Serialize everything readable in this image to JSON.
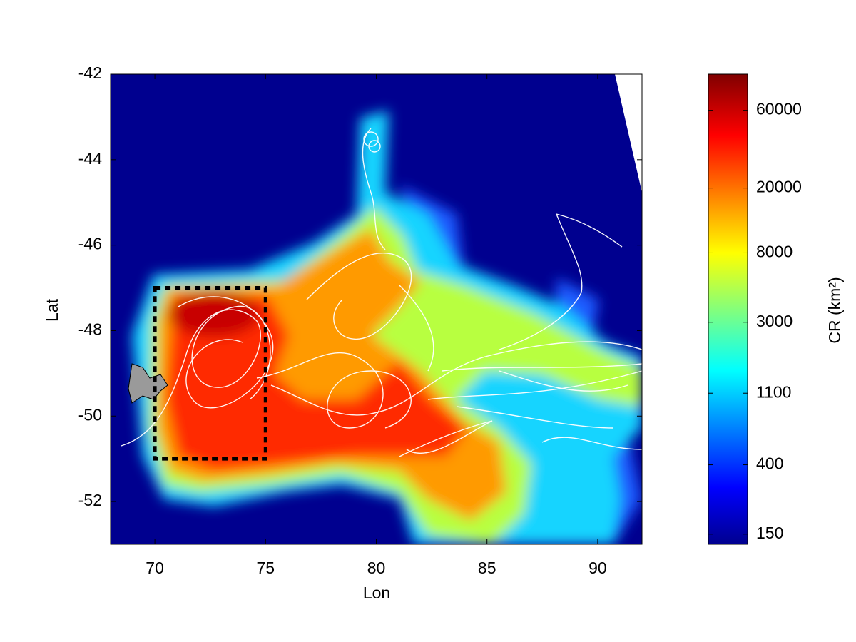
{
  "chart_data": {
    "type": "heatmap",
    "xlabel": "Lon",
    "ylabel": "Lat",
    "xlim": [
      68,
      92
    ],
    "ylim": [
      -53,
      -42
    ],
    "xticks": [
      70,
      75,
      80,
      85,
      90
    ],
    "yticks": [
      -52,
      -50,
      -48,
      -46,
      -44,
      -42
    ],
    "box": {
      "x": [
        70,
        75
      ],
      "y": [
        -51,
        -47
      ]
    },
    "colorbar": {
      "label": "CR (km²)",
      "scale": "log",
      "lim": [
        130,
        100000
      ],
      "ticks": [
        150,
        400,
        1100,
        3000,
        8000,
        20000,
        60000
      ]
    }
  }
}
